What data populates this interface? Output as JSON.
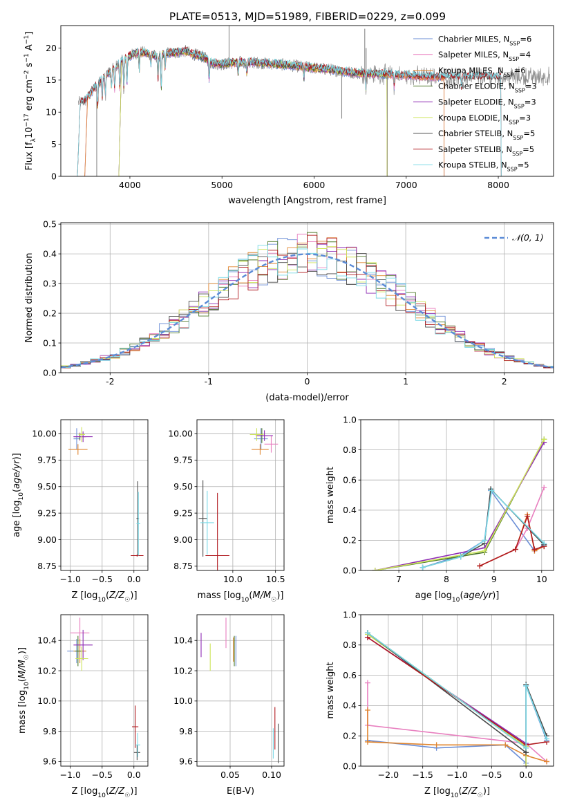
{
  "figure_title": "PLATE=0513, MJD=51989, FIBERID=0229, z=0.099",
  "colors": {
    "Chabrier MILES": "#6b8ed6",
    "Salpeter MILES": "#e87fbf",
    "Kroupa MILES": "#e0852e",
    "Chabrier ELODIE": "#4f7a2a",
    "Salpeter ELODIE": "#8e2bb3",
    "Kroupa ELODIE": "#cde45a",
    "Chabrier STELIB": "#4a4a4a",
    "Salpeter STELIB": "#b0191e",
    "Kroupa STELIB": "#79d9e6"
  },
  "chart_data": [
    {
      "type": "line",
      "id": "spectrum",
      "title": "PLATE=0513, MJD=51989, FIBERID=0229, z=0.099",
      "xlabel": "wavelength [Angstrom, rest frame]",
      "ylabel": "Flux [f_λ 10^-17 erg cm^-2 s^-1 A^-1]",
      "xlim": [
        3250,
        8600
      ],
      "ylim": [
        0,
        23.5
      ],
      "xticks": [
        4000,
        5000,
        6000,
        7000,
        8000
      ],
      "yticks": [
        0,
        5,
        10,
        15,
        20
      ],
      "grid": false,
      "legend_position": "top-right",
      "legend": [
        {
          "label": "Chabrier MILES, N_SSP=6",
          "series": "Chabrier MILES"
        },
        {
          "label": "Salpeter MILES, N_SSP=4",
          "series": "Salpeter MILES"
        },
        {
          "label": "Kroupa MILES, N_SSP=6",
          "series": "Kroupa MILES"
        },
        {
          "label": "Chabrier ELODIE, N_SSP=3",
          "series": "Chabrier ELODIE"
        },
        {
          "label": "Salpeter ELODIE, N_SSP=3",
          "series": "Salpeter ELODIE"
        },
        {
          "label": "Kroupa ELODIE, N_SSP=3",
          "series": "Kroupa ELODIE"
        },
        {
          "label": "Chabrier STELIB, N_SSP=5",
          "series": "Chabrier STELIB"
        },
        {
          "label": "Salpeter STELIB, N_SSP=5",
          "series": "Salpeter STELIB"
        },
        {
          "label": "Kroupa STELIB, N_SSP=5",
          "series": "Kroupa STELIB"
        }
      ],
      "data_series": {
        "name": "",
        "color": "#888888"
      },
      "continuum": {
        "x": [
          3450,
          3520,
          3600,
          3700,
          3800,
          3900,
          4000,
          4100,
          4200,
          4300,
          4400,
          4500,
          4600,
          4700,
          4800,
          4900,
          5000,
          5200,
          5400,
          5600,
          5800,
          6000,
          6200,
          6400,
          6600,
          6800,
          7000,
          7200,
          7400
        ],
        "y": [
          11.5,
          11.8,
          13.5,
          15.2,
          16.5,
          17.8,
          18.8,
          19.4,
          19.2,
          18.6,
          19.2,
          19.3,
          19.5,
          19.0,
          18.6,
          17.6,
          17.5,
          17.8,
          17.7,
          17.5,
          17.2,
          16.9,
          16.6,
          16.2,
          16.0,
          15.9,
          15.7,
          15.6,
          15.5
        ]
      },
      "model_cutoffs": {
        "Chabrier MILES": [
          3540,
          7410
        ],
        "Salpeter MILES": [
          3540,
          7410
        ],
        "Kroupa MILES": [
          3540,
          7410
        ],
        "Chabrier ELODIE": [
          3910,
          6790
        ],
        "Salpeter ELODIE": [
          3910,
          6790
        ],
        "Kroupa ELODIE": [
          3910,
          6790
        ],
        "Chabrier STELIB": [
          3460,
          8030
        ],
        "Salpeter STELIB": [
          3460,
          8030
        ],
        "Kroupa STELIB": [
          3460,
          8030
        ]
      }
    },
    {
      "type": "histogram",
      "id": "residuals",
      "xlabel": "(data-model)/error",
      "ylabel": "Normed distribution",
      "xlim": [
        -2.5,
        2.5
      ],
      "ylim": [
        0,
        0.505
      ],
      "xticks": [
        -2,
        -1,
        0,
        1,
        2
      ],
      "yticks": [
        0.0,
        0.1,
        0.2,
        0.3,
        0.4,
        0.5
      ],
      "grid": true,
      "legend_position": "top-right",
      "bin_width": 0.1,
      "reference_curve": {
        "label": "𝒩(0, 1)",
        "mean": 0,
        "sigma": 1,
        "style": "dashed",
        "color": "#5b8bd6"
      }
    },
    {
      "type": "errorbar",
      "id": "age-vs-Z",
      "xlabel": "Z [log10(Z/Z☉)]",
      "ylabel": "age [log10(age/yr)]",
      "xlim": [
        -1.15,
        0.22
      ],
      "ylim": [
        8.71,
        10.13
      ],
      "xticks": [
        -1.0,
        -0.5,
        0.0
      ],
      "xtick_labels": [
        "−1.0",
        "−0.5",
        "0.0"
      ],
      "yticks": [
        8.75,
        9.0,
        9.25,
        9.5,
        9.75,
        10.0
      ],
      "ytick_labels": [
        "8.75",
        "9.00",
        "9.25",
        "9.50",
        "9.75",
        "10.00"
      ],
      "grid": true,
      "points": [
        {
          "series": "Chabrier MILES",
          "x": -0.9,
          "xerr": 0.05,
          "y": 9.95,
          "yerr": 0.1
        },
        {
          "series": "Salpeter MILES",
          "x": -0.85,
          "xerr": 0.08,
          "y": 9.97,
          "yerr": 0.04
        },
        {
          "series": "Kroupa MILES",
          "x": -0.88,
          "xerr": 0.15,
          "y": 9.85,
          "yerr": 0.05
        },
        {
          "series": "Chabrier ELODIE",
          "x": -0.85,
          "xerr": 0.1,
          "y": 9.97,
          "yerr": 0.03
        },
        {
          "series": "Salpeter ELODIE",
          "x": -0.8,
          "xerr": 0.15,
          "y": 9.97,
          "yerr": 0.05
        },
        {
          "series": "Kroupa ELODIE",
          "x": -0.82,
          "xerr": 0.05,
          "y": 9.99,
          "yerr": 0.07
        },
        {
          "series": "Chabrier STELIB",
          "x": 0.06,
          "xerr": 0.02,
          "y": 9.2,
          "yerr": 0.35
        },
        {
          "series": "Salpeter STELIB",
          "x": 0.05,
          "xerr": 0.1,
          "y": 8.85,
          "yerr": 0.01
        },
        {
          "series": "Kroupa STELIB",
          "x": 0.07,
          "xerr": 0.03,
          "y": 9.15,
          "yerr": 0.3
        }
      ]
    },
    {
      "type": "errorbar",
      "id": "age-vs-mass",
      "xlabel": "mass [log10(M/M☉)]",
      "ylabel": "",
      "xlim": [
        9.58,
        10.6
      ],
      "ylim": [
        8.71,
        10.13
      ],
      "xticks": [
        10.0,
        10.5
      ],
      "xtick_labels": [
        "10.0",
        "10.5"
      ],
      "yticks": [
        8.75,
        9.0,
        9.25,
        9.5,
        9.75,
        10.0
      ],
      "ytick_labels": [
        "8.75",
        "9.00",
        "9.25",
        "9.50",
        "9.75",
        "10.00"
      ],
      "grid": true,
      "points": [
        {
          "series": "Chabrier MILES",
          "x": 10.33,
          "xerr": 0.08,
          "y": 9.95,
          "yerr": 0.1
        },
        {
          "series": "Salpeter MILES",
          "x": 10.45,
          "xerr": 0.08,
          "y": 9.9,
          "yerr": 0.08
        },
        {
          "series": "Kroupa MILES",
          "x": 10.32,
          "xerr": 0.1,
          "y": 9.85,
          "yerr": 0.05
        },
        {
          "series": "Chabrier ELODIE",
          "x": 10.34,
          "xerr": 0.07,
          "y": 9.98,
          "yerr": 0.07
        },
        {
          "series": "Salpeter ELODIE",
          "x": 10.37,
          "xerr": 0.1,
          "y": 9.98,
          "yerr": 0.05
        },
        {
          "series": "Kroupa ELODIE",
          "x": 10.28,
          "xerr": 0.08,
          "y": 9.99,
          "yerr": 0.06
        },
        {
          "series": "Chabrier STELIB",
          "x": 9.65,
          "xerr": 0.05,
          "y": 9.2,
          "yerr": 0.36
        },
        {
          "series": "Salpeter STELIB",
          "x": 9.82,
          "xerr": 0.14,
          "y": 8.85,
          "yerr": 0.59
        },
        {
          "series": "Kroupa STELIB",
          "x": 9.7,
          "xerr": 0.08,
          "y": 9.16,
          "yerr": 0.3
        }
      ]
    },
    {
      "type": "line",
      "id": "weight-vs-age",
      "xlabel": "age [log10(age/yr)]",
      "ylabel": "mass weight",
      "xlim": [
        6.2,
        10.25
      ],
      "ylim": [
        0,
        1.0
      ],
      "xticks": [
        7,
        8,
        9,
        10
      ],
      "yticks": [
        0.0,
        0.2,
        0.4,
        0.6,
        0.8,
        1.0
      ],
      "grid": true,
      "series": [
        {
          "name": "Chabrier MILES",
          "x": [
            7.5,
            8.3,
            8.8,
            8.93,
            9.85,
            10.05
          ],
          "y": [
            0.02,
            0.1,
            0.2,
            0.53,
            0.13,
            0.17
          ]
        },
        {
          "name": "Salpeter MILES",
          "x": [
            8.7,
            9.45,
            9.7,
            10.05
          ],
          "y": [
            0.03,
            0.14,
            0.28,
            0.55
          ]
        },
        {
          "name": "Kroupa MILES",
          "x": [
            8.7,
            9.45,
            9.7,
            9.85,
            10.05
          ],
          "y": [
            0.03,
            0.14,
            0.37,
            0.13,
            0.16
          ]
        },
        {
          "name": "Chabrier ELODIE",
          "x": [
            6.5,
            8.8,
            10.05
          ],
          "y": [
            0.0,
            0.12,
            0.87
          ]
        },
        {
          "name": "Salpeter ELODIE",
          "x": [
            6.5,
            8.8,
            10.05
          ],
          "y": [
            0.0,
            0.15,
            0.85
          ]
        },
        {
          "name": "Kroupa ELODIE",
          "x": [
            6.5,
            8.8,
            10.05
          ],
          "y": [
            0.0,
            0.13,
            0.87
          ]
        },
        {
          "name": "Chabrier STELIB",
          "x": [
            7.5,
            8.3,
            8.8,
            8.93,
            10.05
          ],
          "y": [
            0.02,
            0.09,
            0.18,
            0.54,
            0.17
          ]
        },
        {
          "name": "Salpeter STELIB",
          "x": [
            8.7,
            9.45,
            9.7,
            9.85,
            10.05
          ],
          "y": [
            0.03,
            0.14,
            0.36,
            0.14,
            0.16
          ]
        },
        {
          "name": "Kroupa STELIB",
          "x": [
            7.5,
            8.3,
            8.8,
            8.95,
            10.05
          ],
          "y": [
            0.02,
            0.09,
            0.2,
            0.53,
            0.18
          ]
        }
      ]
    },
    {
      "type": "errorbar",
      "id": "mass-vs-Z",
      "xlabel": "Z [log10(Z/Z☉)]",
      "ylabel": "mass [log10(M/M☉)]",
      "xlim": [
        -1.15,
        0.22
      ],
      "ylim": [
        9.57,
        10.57
      ],
      "xticks": [
        -1.0,
        -0.5,
        0.0
      ],
      "xtick_labels": [
        "−1.0",
        "−0.5",
        "0.0"
      ],
      "yticks": [
        9.6,
        9.8,
        10.0,
        10.2,
        10.4
      ],
      "ytick_labels": [
        "9.6",
        "9.8",
        "10.0",
        "10.2",
        "10.4"
      ],
      "grid": true,
      "points": [
        {
          "series": "Chabrier MILES",
          "x": -0.9,
          "xerr": 0.15,
          "y": 10.33,
          "yerr": 0.08
        },
        {
          "series": "Salpeter MILES",
          "x": -0.85,
          "xerr": 0.15,
          "y": 10.45,
          "yerr": 0.1
        },
        {
          "series": "Kroupa MILES",
          "x": -0.85,
          "xerr": 0.1,
          "y": 10.33,
          "yerr": 0.08
        },
        {
          "series": "Chabrier ELODIE",
          "x": -0.88,
          "xerr": 0.05,
          "y": 10.33,
          "yerr": 0.1
        },
        {
          "series": "Salpeter ELODIE",
          "x": -0.8,
          "xerr": 0.15,
          "y": 10.37,
          "yerr": 0.1
        },
        {
          "series": "Kroupa ELODIE",
          "x": -0.82,
          "xerr": 0.1,
          "y": 10.28,
          "yerr": 0.08
        },
        {
          "series": "Chabrier STELIB",
          "x": 0.05,
          "xerr": 0.05,
          "y": 9.66,
          "yerr": 0.05
        },
        {
          "series": "Salpeter STELIB",
          "x": 0.02,
          "xerr": 0.05,
          "y": 9.83,
          "yerr": 0.14
        },
        {
          "series": "Kroupa STELIB",
          "x": 0.06,
          "xerr": 0.04,
          "y": 9.71,
          "yerr": 0.08
        }
      ]
    },
    {
      "type": "errorbar",
      "id": "mass-vs-EBV",
      "xlabel": "E(B-V)",
      "ylabel": "",
      "xlim": [
        0.01,
        0.115
      ],
      "ylim": [
        9.57,
        10.57
      ],
      "xticks": [
        0.05,
        0.1
      ],
      "xtick_labels": [
        "0.05",
        "0.10"
      ],
      "yticks": [
        9.6,
        9.8,
        10.0,
        10.2,
        10.4
      ],
      "ytick_labels": [
        "9.6",
        "9.8",
        "10.0",
        "10.2",
        "10.4"
      ],
      "grid": true,
      "points": [
        {
          "series": "Chabrier MILES",
          "x": 0.057,
          "y": 10.33,
          "yerr": 0.1
        },
        {
          "series": "Salpeter MILES",
          "x": 0.045,
          "y": 10.45,
          "yerr": 0.1
        },
        {
          "series": "Kroupa MILES",
          "x": 0.054,
          "y": 10.34,
          "yerr": 0.08
        },
        {
          "series": "Chabrier ELODIE",
          "x": 0.055,
          "y": 10.33,
          "yerr": 0.1
        },
        {
          "series": "Salpeter ELODIE",
          "x": 0.015,
          "y": 10.37,
          "yerr": 0.08
        },
        {
          "series": "Kroupa ELODIE",
          "x": 0.026,
          "y": 10.29,
          "yerr": 0.09
        },
        {
          "series": "Chabrier STELIB",
          "x": 0.108,
          "y": 9.72,
          "yerr": 0.13
        },
        {
          "series": "Salpeter STELIB",
          "x": 0.104,
          "y": 9.82,
          "yerr": 0.14
        },
        {
          "series": "Kroupa STELIB",
          "x": 0.102,
          "y": 9.72,
          "yerr": 0.1
        }
      ]
    },
    {
      "type": "line",
      "id": "weight-vs-Z",
      "xlabel": "Z [log10(Z/Z☉)]",
      "ylabel": "mass weight",
      "xlim": [
        -2.4,
        0.4
      ],
      "ylim": [
        0,
        1.0
      ],
      "xticks": [
        -2.0,
        -1.5,
        -1.0,
        -0.5,
        0.0
      ],
      "xtick_labels": [
        "−2.0",
        "−1.5",
        "−1.0",
        "−0.5",
        "0.0"
      ],
      "yticks": [
        0.0,
        0.2,
        0.4,
        0.6,
        0.8,
        1.0
      ],
      "grid": true,
      "series": [
        {
          "name": "Chabrier MILES",
          "x": [
            -2.3,
            -1.3,
            -0.3,
            0.0,
            0.0,
            0.3
          ],
          "y": [
            0.17,
            0.12,
            0.14,
            0.02,
            0.53,
            0.17
          ]
        },
        {
          "name": "Salpeter MILES",
          "x": [
            -2.3,
            -2.3,
            0.0,
            0.3
          ],
          "y": [
            0.55,
            0.27,
            0.15,
            0.03
          ]
        },
        {
          "name": "Kroupa MILES",
          "x": [
            -2.3,
            -2.3,
            -1.3,
            -0.3,
            0.0,
            0.3
          ],
          "y": [
            0.37,
            0.16,
            0.14,
            0.14,
            0.07,
            0.03
          ]
        },
        {
          "name": "Chabrier ELODIE",
          "x": [
            -2.3,
            0.0,
            0.0
          ],
          "y": [
            0.88,
            0.12,
            0.0
          ]
        },
        {
          "name": "Salpeter ELODIE",
          "x": [
            -2.3,
            0.0,
            0.0
          ],
          "y": [
            0.85,
            0.15,
            0.0
          ]
        },
        {
          "name": "Kroupa ELODIE",
          "x": [
            -2.3,
            0.0,
            0.0
          ],
          "y": [
            0.87,
            0.13,
            0.0
          ]
        },
        {
          "name": "Chabrier STELIB",
          "x": [
            -2.3,
            0.0,
            0.0,
            0.3
          ],
          "y": [
            0.88,
            0.09,
            0.54,
            0.2
          ]
        },
        {
          "name": "Salpeter STELIB",
          "x": [
            -2.3,
            0.0,
            0.3
          ],
          "y": [
            0.85,
            0.14,
            0.16
          ]
        },
        {
          "name": "Kroupa STELIB",
          "x": [
            -2.3,
            0.0,
            0.0,
            0.3
          ],
          "y": [
            0.88,
            0.12,
            0.53,
            0.18
          ]
        }
      ]
    }
  ]
}
